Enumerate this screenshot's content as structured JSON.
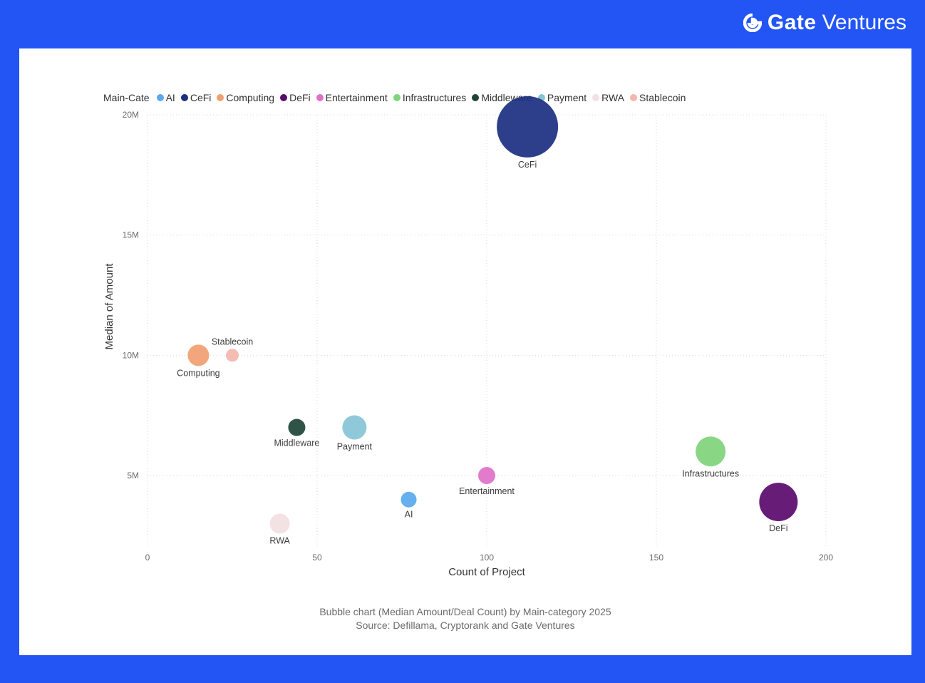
{
  "brand": {
    "gate": "Gate",
    "ventures": "Ventures",
    "color": "#ffffff",
    "background": "#2355f5"
  },
  "caption": {
    "line1": "Bubble chart (Median Amount/Deal Count) by Main-category 2025",
    "line2": "Source: Defillama, Cryptorank and Gate Ventures"
  },
  "chart_data": {
    "type": "scatter",
    "title": "",
    "xlabel": "Count of Project",
    "ylabel": "Median of Amount",
    "xlim": [
      0,
      200
    ],
    "ylim": [
      2000000,
      20000000
    ],
    "x_ticks": [
      0,
      50,
      100,
      150,
      200
    ],
    "x_tick_labels": [
      "0",
      "50",
      "100",
      "150",
      "200"
    ],
    "y_ticks": [
      5000000,
      10000000,
      15000000,
      20000000
    ],
    "y_tick_labels": [
      "5M",
      "10M",
      "15M",
      "20M"
    ],
    "grid": true,
    "legend_position": "top-left",
    "legend_title": "Main-Cate",
    "series": [
      {
        "name": "AI",
        "x": 77,
        "y": 4000000,
        "size": 11,
        "color": "#5aa9ee"
      },
      {
        "name": "CeFi",
        "x": 112,
        "y": 19500000,
        "size": 43,
        "color": "#1b2f80"
      },
      {
        "name": "Computing",
        "x": 15,
        "y": 10000000,
        "size": 15,
        "color": "#f0a070"
      },
      {
        "name": "DeFi",
        "x": 186,
        "y": 3900000,
        "size": 27,
        "color": "#5a0a6b"
      },
      {
        "name": "Entertainment",
        "x": 100,
        "y": 5000000,
        "size": 12,
        "color": "#e070c8"
      },
      {
        "name": "Infrastructures",
        "x": 166,
        "y": 6000000,
        "size": 21,
        "color": "#7fd47a"
      },
      {
        "name": "Middleware",
        "x": 44,
        "y": 7000000,
        "size": 12,
        "color": "#1e4438"
      },
      {
        "name": "Payment",
        "x": 61,
        "y": 7000000,
        "size": 17,
        "color": "#86c4d6"
      },
      {
        "name": "RWA",
        "x": 39,
        "y": 3000000,
        "size": 14,
        "color": "#f2e0e2"
      },
      {
        "name": "Stablecoin",
        "x": 25,
        "y": 10000000,
        "size": 9,
        "color": "#f4b6ae"
      }
    ]
  }
}
